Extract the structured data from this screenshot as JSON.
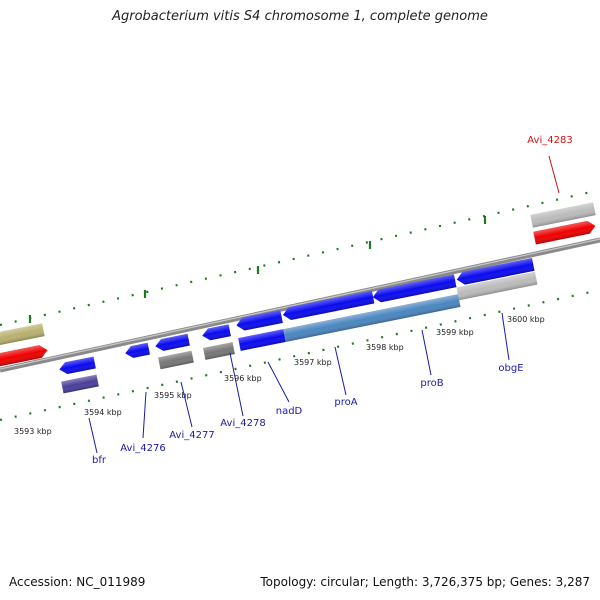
{
  "title": "Agrobacterium vitis S4 chromosome 1, complete genome",
  "footer": {
    "accession": "Accession: NC_011989",
    "summary": "Topology: circular; Length: 3,726,375 bp; Genes: 3,287"
  },
  "colors": {
    "backbone": "#8a8a8a",
    "tick": "#1f7a1f",
    "forward_gene": "#0a0af0",
    "reverse_gene": "#ee0000",
    "unlabeled_rna": "#bbbbbb",
    "pseudo": "#777777",
    "olive": "#b8b070",
    "purple": "#4a3f9a",
    "steelblue": "#4a86c0",
    "label_forward": "#1a1aa8",
    "label_reverse": "#cc1111"
  },
  "ticks": [
    "3593 kbp",
    "3594 kbp",
    "3595 kbp",
    "3596 kbp",
    "3597 kbp",
    "3598 kbp",
    "3599 kbp",
    "3600 kbp"
  ],
  "gene_labels": [
    {
      "text": "bfr",
      "color": "label_forward"
    },
    {
      "text": "Avi_4276",
      "color": "label_forward"
    },
    {
      "text": "Avi_4277",
      "color": "label_forward"
    },
    {
      "text": "Avi_4278",
      "color": "label_forward"
    },
    {
      "text": "nadD",
      "color": "label_forward"
    },
    {
      "text": "proA",
      "color": "label_forward"
    },
    {
      "text": "proB",
      "color": "label_forward"
    },
    {
      "text": "obgE",
      "color": "label_forward"
    },
    {
      "text": "Avi_4283",
      "color": "label_reverse"
    }
  ]
}
